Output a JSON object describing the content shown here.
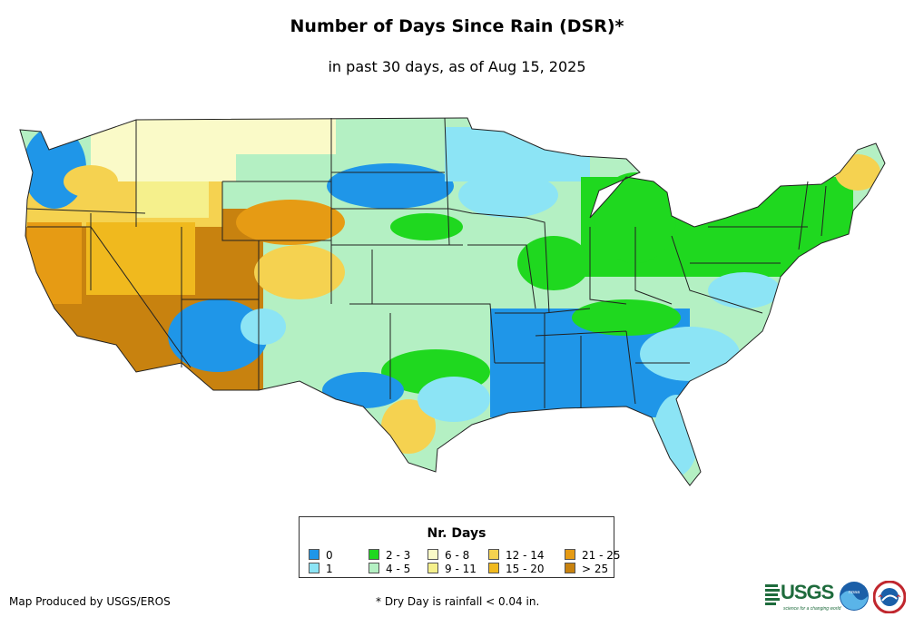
{
  "header": {
    "title": "Number of Days Since Rain (DSR)*",
    "subtitle": "in past 30 days, as of Aug 15, 2025"
  },
  "legend": {
    "title": "Nr. Days",
    "items": [
      {
        "label": "0",
        "color": "#1f96e8"
      },
      {
        "label": "1",
        "color": "#8ce4f5"
      },
      {
        "label": "2 - 3",
        "color": "#1fd81f"
      },
      {
        "label": "4 - 5",
        "color": "#b4f0c3"
      },
      {
        "label": "6 - 8",
        "color": "#fafac8"
      },
      {
        "label": "9 - 11",
        "color": "#f5f08c"
      },
      {
        "label": "12 - 14",
        "color": "#f5d250"
      },
      {
        "label": "15 - 20",
        "color": "#f0b91e"
      },
      {
        "label": "21 - 25",
        "color": "#e69b14"
      },
      {
        "label": "> 25",
        "color": "#c8820f"
      }
    ]
  },
  "footer": {
    "credit": "Map Produced by USGS/EROS",
    "note": "* Dry Day is rainfall < 0.04 in."
  },
  "logos": {
    "usgs_word": "USGS",
    "usgs_tagline": "science for a changing world",
    "noaa": "noaa",
    "nws": "national weather service"
  },
  "map": {
    "region": "Contiguous United States",
    "icon": "usa-map-icon"
  }
}
